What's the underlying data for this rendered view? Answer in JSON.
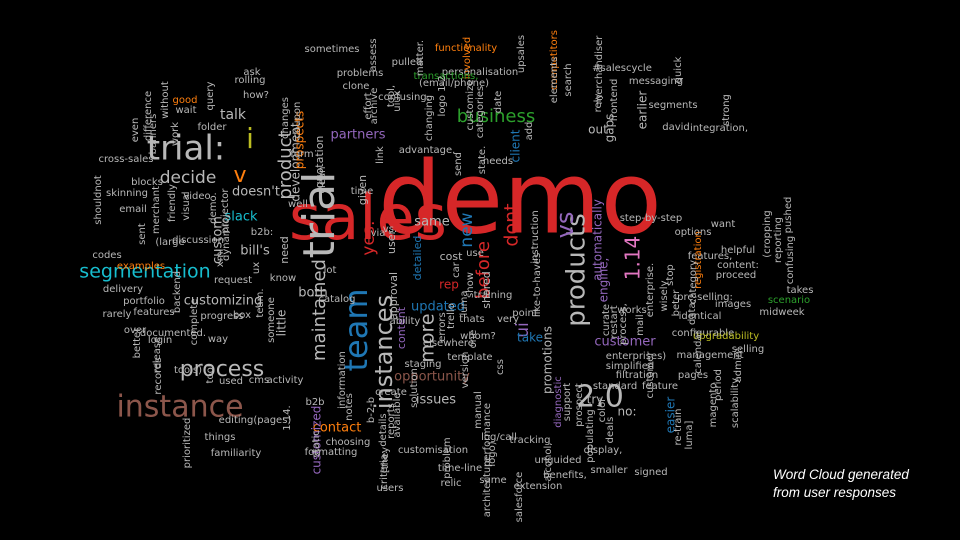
{
  "caption": {
    "line1": "Word Cloud generated",
    "line2": "from user responses"
  },
  "palette": {
    "red": "#d62728",
    "blue": "#1f77b4",
    "cyan": "#17becf",
    "orange": "#ff7f0e",
    "green": "#2ca02c",
    "purple": "#9467bd",
    "brown": "#8c564b",
    "pink": "#e377c2",
    "gray": "#b8b8b8",
    "olive": "#bcbd22",
    "white": "#f0f0f0"
  },
  "words": [
    {
      "text": "demo",
      "color": "red"
    },
    {
      "text": "sales",
      "color": "red"
    },
    {
      "text": "trial",
      "color": "gray"
    },
    {
      "text": "trial:",
      "color": "gray"
    },
    {
      "text": "team",
      "color": "blue"
    },
    {
      "text": "instance",
      "color": "brown"
    },
    {
      "text": "2.0",
      "color": "gray"
    },
    {
      "text": "products",
      "color": "gray"
    },
    {
      "text": "instances",
      "color": "gray"
    },
    {
      "text": "vs",
      "color": "purple"
    },
    {
      "text": "1.14",
      "color": "pink"
    },
    {
      "text": "process",
      "color": "gray"
    },
    {
      "text": "segmentation",
      "color": "cyan"
    },
    {
      "text": "business",
      "color": "green"
    },
    {
      "text": "maintained",
      "color": "gray"
    },
    {
      "text": "decide",
      "color": "gray"
    },
    {
      "text": "product",
      "color": "gray"
    },
    {
      "text": "dont",
      "color": "red"
    },
    {
      "text": "more",
      "color": "gray"
    },
    {
      "text": "before",
      "color": "red"
    },
    {
      "text": "new",
      "color": "blue"
    },
    {
      "text": "yes:",
      "color": "red"
    },
    {
      "text": "ui",
      "color": "purple"
    },
    {
      "text": "v",
      "color": "orange"
    },
    {
      "text": "i",
      "color": "olive"
    },
    {
      "text": "customer",
      "color": "purple"
    },
    {
      "text": "opportunity",
      "color": "brown"
    },
    {
      "text": "customizing",
      "color": "gray"
    },
    {
      "text": "issues",
      "color": "gray"
    },
    {
      "text": "partners",
      "color": "purple"
    },
    {
      "text": "development",
      "color": "gray"
    },
    {
      "text": "promotions",
      "color": "gray"
    },
    {
      "text": "automatically",
      "color": "purple"
    },
    {
      "text": "prospects",
      "color": "orange"
    },
    {
      "text": "easier",
      "color": "blue"
    },
    {
      "text": "talk",
      "color": "gray"
    },
    {
      "text": "slack",
      "color": "cyan"
    },
    {
      "text": "custom",
      "color": "gray"
    },
    {
      "text": "doesn't",
      "color": "gray"
    },
    {
      "text": "bill's",
      "color": "gray"
    },
    {
      "text": "both",
      "color": "gray"
    },
    {
      "text": "contact",
      "color": "orange"
    },
    {
      "text": "customized",
      "color": "purple"
    },
    {
      "text": "updated",
      "color": "blue"
    },
    {
      "text": "same",
      "color": "gray"
    },
    {
      "text": "little",
      "color": "gray"
    },
    {
      "text": "take",
      "color": "blue"
    },
    {
      "text": "out",
      "color": "gray"
    },
    {
      "text": "gaps",
      "color": "gray"
    },
    {
      "text": "earlier",
      "color": "gray"
    },
    {
      "text": "engine,",
      "color": "purple"
    },
    {
      "text": "client",
      "color": "blue"
    },
    {
      "text": "detailed",
      "color": "blue"
    },
    {
      "text": "approval",
      "color": "gray"
    },
    {
      "text": "content",
      "color": "purple"
    },
    {
      "text": "shared",
      "color": "gray"
    },
    {
      "text": "given",
      "color": "gray"
    },
    {
      "text": "cost",
      "color": "gray"
    },
    {
      "text": "rep",
      "color": "red"
    },
    {
      "text": "try",
      "color": "gray"
    },
    {
      "text": "no:",
      "color": "gray"
    },
    {
      "text": "need",
      "color": "gray"
    },
    {
      "text": "quotation",
      "color": "gray"
    },
    {
      "text": "user",
      "color": "gray"
    },
    {
      "text": "b2b:",
      "color": "gray"
    },
    {
      "text": "diagnostic",
      "color": "purple"
    },
    {
      "text": "enterprises)",
      "color": "gray"
    },
    {
      "text": "simplified",
      "color": "gray"
    },
    {
      "text": "filtration",
      "color": "gray"
    },
    {
      "text": "standard",
      "color": "gray"
    },
    {
      "text": "feature",
      "color": "gray"
    },
    {
      "text": "pages",
      "color": "gray"
    },
    {
      "text": "identical",
      "color": "gray"
    },
    {
      "text": "configurable",
      "color": "gray"
    },
    {
      "text": "customer",
      "color": "gray"
    },
    {
      "text": "works",
      "color": "gray"
    },
    {
      "text": "upgradability",
      "color": "olive"
    },
    {
      "text": "selling",
      "color": "gray"
    },
    {
      "text": "midweek",
      "color": "gray"
    },
    {
      "text": "takes",
      "color": "gray"
    },
    {
      "text": "scenario",
      "color": "green"
    },
    {
      "text": "images",
      "color": "gray"
    },
    {
      "text": "helpful",
      "color": "gray"
    },
    {
      "text": "proceed",
      "color": "gray"
    },
    {
      "text": "content:",
      "color": "gray"
    },
    {
      "text": "features,",
      "color": "gray"
    },
    {
      "text": "registration",
      "color": "orange"
    },
    {
      "text": "confusing",
      "color": "gray"
    },
    {
      "text": "reporting",
      "color": "gray"
    },
    {
      "text": "pushed",
      "color": "gray"
    },
    {
      "text": "want",
      "color": "gray"
    },
    {
      "text": "options",
      "color": "gray"
    },
    {
      "text": "step-by-step",
      "color": "gray"
    },
    {
      "text": "(cropping",
      "color": "gray"
    },
    {
      "text": "integration,",
      "color": "gray"
    },
    {
      "text": "david",
      "color": "gray"
    },
    {
      "text": "segments",
      "color": "gray"
    },
    {
      "text": "messaging",
      "color": "gray"
    },
    {
      "text": "strong",
      "color": "gray"
    },
    {
      "text": "functionality",
      "color": "orange"
    },
    {
      "text": "involved",
      "color": "orange"
    },
    {
      "text": "personalisation",
      "color": "gray"
    },
    {
      "text": "upsales",
      "color": "gray"
    },
    {
      "text": "competitors",
      "color": "orange"
    },
    {
      "text": "merchandiser",
      "color": "gray"
    },
    {
      "text": "#salescycle",
      "color": "gray"
    },
    {
      "text": "pulled",
      "color": "gray"
    },
    {
      "text": "transactions,",
      "color": "green"
    },
    {
      "text": "(email/phone)",
      "color": "gray"
    },
    {
      "text": "elements",
      "color": "gray"
    },
    {
      "text": "search",
      "color": "gray"
    },
    {
      "text": "frontend",
      "color": "gray"
    },
    {
      "text": "sometimes",
      "color": "gray"
    },
    {
      "text": "matter.",
      "color": "gray"
    },
    {
      "text": "assess",
      "color": "gray"
    },
    {
      "text": "rolling",
      "color": "gray"
    },
    {
      "text": "problems",
      "color": "gray"
    },
    {
      "text": "clone",
      "color": "gray"
    },
    {
      "text": "confusing,",
      "color": "gray"
    },
    {
      "text": "customize",
      "color": "gray"
    },
    {
      "text": "categories",
      "color": "gray"
    },
    {
      "text": "logo 1-2",
      "color": "gray"
    },
    {
      "text": "good",
      "color": "orange"
    },
    {
      "text": "wait",
      "color": "gray"
    },
    {
      "text": "query",
      "color": "gray"
    },
    {
      "text": "without",
      "color": "gray"
    },
    {
      "text": "difference",
      "color": "gray"
    },
    {
      "text": "even",
      "color": "gray"
    },
    {
      "text": "banners",
      "color": "gray"
    },
    {
      "text": "cross-sales",
      "color": "gray"
    },
    {
      "text": "work",
      "color": "gray"
    },
    {
      "text": "blocks",
      "color": "gray"
    },
    {
      "text": "skinning",
      "color": "gray"
    },
    {
      "text": "email",
      "color": "gray"
    },
    {
      "text": "sent",
      "color": "gray"
    },
    {
      "text": "shouldnot",
      "color": "gray"
    },
    {
      "text": "merchant",
      "color": "gray"
    },
    {
      "text": "visual",
      "color": "gray"
    },
    {
      "text": "friendly",
      "color": "gray"
    },
    {
      "text": "video",
      "color": "gray"
    },
    {
      "text": "demo.",
      "color": "gray"
    },
    {
      "text": "projector",
      "color": "gray"
    },
    {
      "text": "dynamic,",
      "color": "gray"
    },
    {
      "text": "(large",
      "color": "gray"
    },
    {
      "text": "discussion",
      "color": "gray"
    },
    {
      "text": "codes",
      "color": "gray"
    },
    {
      "text": "examples",
      "color": "orange"
    },
    {
      "text": "delivery",
      "color": "gray"
    },
    {
      "text": "portfolio",
      "color": "gray"
    },
    {
      "text": "backend",
      "color": "gray"
    },
    {
      "text": "rarely",
      "color": "gray"
    },
    {
      "text": "over",
      "color": "gray"
    },
    {
      "text": "better",
      "color": "gray"
    },
    {
      "text": "login",
      "color": "gray"
    },
    {
      "text": "release",
      "color": "gray"
    },
    {
      "text": "records",
      "color": "gray"
    },
    {
      "text": "tools)",
      "color": "gray"
    },
    {
      "text": "features",
      "color": "gray"
    },
    {
      "text": "documented.",
      "color": "gray"
    },
    {
      "text": "complete",
      "color": "gray"
    },
    {
      "text": "way",
      "color": "gray"
    },
    {
      "text": "box",
      "color": "gray"
    },
    {
      "text": "progress",
      "color": "gray"
    },
    {
      "text": "team.",
      "color": "gray"
    },
    {
      "text": "someone",
      "color": "gray"
    },
    {
      "text": "request",
      "color": "gray"
    },
    {
      "text": "know",
      "color": "gray"
    },
    {
      "text": "tool",
      "color": "gray"
    },
    {
      "text": "used",
      "color": "gray"
    },
    {
      "text": "cms",
      "color": "gray"
    },
    {
      "text": "activity",
      "color": "gray"
    },
    {
      "text": "editing(pages)",
      "color": "gray"
    },
    {
      "text": "things",
      "color": "gray"
    },
    {
      "text": "familiarity",
      "color": "gray"
    },
    {
      "text": "prioritized",
      "color": "gray"
    },
    {
      "text": "1.14.",
      "color": "gray"
    },
    {
      "text": "b2b",
      "color": "gray"
    },
    {
      "text": "static",
      "color": "gray"
    },
    {
      "text": "formatting",
      "color": "gray"
    },
    {
      "text": "choosing",
      "color": "gray"
    },
    {
      "text": "notes",
      "color": "gray"
    },
    {
      "text": "information",
      "color": "gray"
    },
    {
      "text": "details",
      "color": "gray"
    },
    {
      "text": "reports",
      "color": "gray"
    },
    {
      "text": "criteria:",
      "color": "gray"
    },
    {
      "text": "users",
      "color": "gray"
    },
    {
      "text": "[they",
      "color": "gray"
    },
    {
      "text": "b-2-b",
      "color": "gray"
    },
    {
      "text": "create",
      "color": "gray"
    },
    {
      "text": "solution",
      "color": "gray"
    },
    {
      "text": "available",
      "color": "gray"
    },
    {
      "text": "problem",
      "color": "gray"
    },
    {
      "text": "customisation",
      "color": "gray"
    },
    {
      "text": "time-line",
      "color": "gray"
    },
    {
      "text": "relic",
      "color": "gray"
    },
    {
      "text": "version",
      "color": "gray"
    },
    {
      "text": "performance",
      "color": "gray"
    },
    {
      "text": "manual",
      "color": "gray"
    },
    {
      "text": "logo)",
      "color": "gray"
    },
    {
      "text": "log/call",
      "color": "gray"
    },
    {
      "text": "tracking",
      "color": "gray"
    },
    {
      "text": "architecture",
      "color": "gray"
    },
    {
      "text": "salesforce",
      "color": "gray"
    },
    {
      "text": "unguided",
      "color": "gray"
    },
    {
      "text": "benefits,",
      "color": "gray"
    },
    {
      "text": "extension",
      "color": "gray"
    },
    {
      "text": "smaller",
      "color": "gray"
    },
    {
      "text": "display,",
      "color": "gray"
    },
    {
      "text": "populating",
      "color": "gray"
    },
    {
      "text": "color",
      "color": "gray"
    },
    {
      "text": "prospect",
      "color": "gray"
    },
    {
      "text": "support",
      "color": "gray"
    },
    {
      "text": "deals",
      "color": "gray"
    },
    {
      "text": "signed",
      "color": "gray"
    },
    {
      "text": "luma]",
      "color": "gray"
    },
    {
      "text": "re-train",
      "color": "gray"
    },
    {
      "text": "magento",
      "color": "gray"
    },
    {
      "text": "period",
      "color": "gray"
    },
    {
      "text": "scalability",
      "color": "gray"
    },
    {
      "text": "admin:",
      "color": "gray"
    },
    {
      "text": "management",
      "color": "gray"
    },
    {
      "text": "calendar",
      "color": "gray"
    },
    {
      "text": "template",
      "color": "gray"
    },
    {
      "text": "css",
      "color": "gray"
    },
    {
      "text": "staging",
      "color": "gray"
    },
    {
      "text": "elsewhere.",
      "color": "gray"
    },
    {
      "text": "whom?",
      "color": "gray"
    },
    {
      "text": "ability",
      "color": "gray"
    },
    {
      "text": "errors",
      "color": "gray"
    },
    {
      "text": "thats",
      "color": "gray"
    },
    {
      "text": "very",
      "color": "gray"
    },
    {
      "text": "training",
      "color": "gray"
    },
    {
      "text": "point",
      "color": "gray"
    },
    {
      "text": "like-to-haves",
      "color": "gray"
    },
    {
      "text": "show",
      "color": "gray"
    },
    {
      "text": "instruction",
      "color": "gray"
    },
    {
      "text": "use",
      "color": "gray"
    },
    {
      "text": "car",
      "color": "gray"
    },
    {
      "text": "luma",
      "color": "gray"
    },
    {
      "text": "via",
      "color": "gray"
    },
    {
      "text": "vs.",
      "color": "gray"
    },
    {
      "text": "catalog",
      "color": "gray"
    },
    {
      "text": "trello",
      "color": "gray"
    },
    {
      "text": "one",
      "color": "gray"
    },
    {
      "text": "curate",
      "color": "gray"
    },
    {
      "text": "restart",
      "color": "gray"
    },
    {
      "text": "process,",
      "color": "gray"
    },
    {
      "text": "mail",
      "color": "gray"
    },
    {
      "text": "enterprise.",
      "color": "gray"
    },
    {
      "text": "wisely",
      "color": "gray"
    },
    {
      "text": "beter",
      "color": "gray"
    },
    {
      "text": "category",
      "color": "gray"
    },
    {
      "text": "pre-selling:",
      "color": "gray"
    },
    {
      "text": "data:",
      "color": "gray"
    },
    {
      "text": "alcohol,",
      "color": "gray"
    },
    {
      "text": "same",
      "color": "gray"
    },
    {
      "text": "link",
      "color": "gray"
    },
    {
      "text": "time",
      "color": "gray"
    },
    {
      "text": "well",
      "color": "gray"
    },
    {
      "text": "advantage.",
      "color": "gray"
    },
    {
      "text": "needs",
      "color": "gray"
    },
    {
      "text": "send",
      "color": "gray"
    },
    {
      "text": "state.",
      "color": "gray"
    },
    {
      "text": "add",
      "color": "gray"
    },
    {
      "text": "tool,",
      "color": "gray"
    },
    {
      "text": "uiux",
      "color": "gray"
    },
    {
      "text": "effort",
      "color": "gray"
    },
    {
      "text": "archive",
      "color": "gray"
    },
    {
      "text": "how?",
      "color": "gray"
    },
    {
      "text": "ask",
      "color": "gray"
    },
    {
      "text": "folder",
      "color": "gray"
    },
    {
      "text": "coupon",
      "color": "gray"
    },
    {
      "text": "changes",
      "color": "gray"
    },
    {
      "text": "date",
      "color": "gray"
    },
    {
      "text": "changing",
      "color": "gray"
    },
    {
      "text": "rely",
      "color": "gray"
    },
    {
      "text": "quick",
      "color": "gray"
    },
    {
      "text": "stop",
      "color": "gray"
    },
    {
      "text": "xml",
      "color": "gray"
    },
    {
      "text": "ux",
      "color": "gray"
    },
    {
      "text": "lot",
      "color": "gray"
    },
    {
      "text": "clean",
      "color": "gray"
    },
    {
      "text": "form",
      "color": "gray"
    },
    {
      "text": "tools",
      "color": "gray"
    }
  ]
}
